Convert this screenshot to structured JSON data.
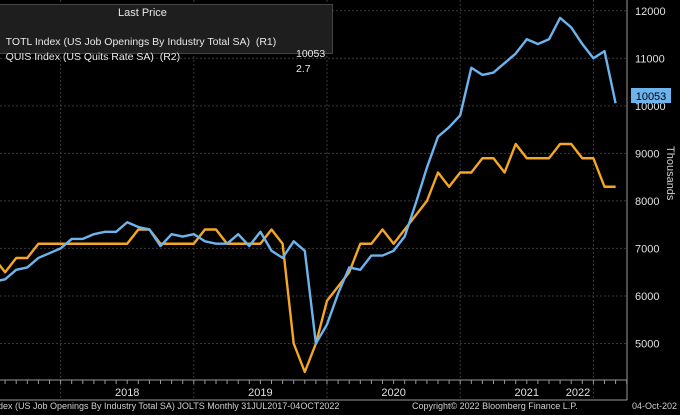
{
  "legend": {
    "header": "Last Price",
    "rows": [
      {
        "label": "TOTL Index (US Job Openings By Industry Total SA)  (R1)",
        "value": "10053",
        "color": "#6cb4ee"
      },
      {
        "label": "QUIS Index (US Quits Rate SA)  (R2)",
        "value": "2.7",
        "color": "#f5a623"
      }
    ]
  },
  "footer": {
    "left": "dex (US Job Openings By Industry Total SA) JOLTS  Monthly 31JUL2017-04OCT2022",
    "center": "Copyright© 2022 Bloomberg Finance L.P.",
    "right": "04-Oct-202"
  },
  "y_axis_title": "Thousands",
  "last_value_badge": "10053",
  "colors": {
    "background": "#000000",
    "openings": "#6cb4ee",
    "quits": "#f5a623",
    "grid": "#3a3a3a"
  },
  "chart_data": {
    "type": "line",
    "x_start": "2017-07",
    "x_end": "2022-08",
    "x_tick_labels": [
      "2018",
      "2019",
      "2020",
      "2021",
      "2022"
    ],
    "y_ticks": [
      5000,
      6000,
      7000,
      8000,
      9000,
      10000,
      11000,
      12000
    ],
    "ylim": [
      4400,
      12100
    ],
    "grid": true,
    "series": [
      {
        "name": "TOTL Index (US Job Openings By Industry Total SA)",
        "axis": "R1",
        "values": [
          6300,
          6350,
          6550,
          6600,
          6800,
          6900,
          7000,
          7200,
          7200,
          7300,
          7350,
          7350,
          7550,
          7450,
          7400,
          7050,
          7300,
          7250,
          7300,
          7150,
          7100,
          7100,
          7300,
          7050,
          7350,
          6950,
          6800,
          7150,
          6950,
          5000,
          5400,
          6050,
          6600,
          6550,
          6850,
          6850,
          6950,
          7250,
          7950,
          8700,
          9350,
          9550,
          9800,
          10800,
          10650,
          10700,
          10900,
          11100,
          11400,
          11300,
          11400,
          11850,
          11650,
          11300,
          11000,
          11150,
          10053
        ]
      },
      {
        "name": "QUIS Index (US Quits Rate SA)",
        "axis": "R2",
        "values": [
          2.2,
          2.1,
          2.2,
          2.2,
          2.3,
          2.3,
          2.3,
          2.3,
          2.3,
          2.3,
          2.3,
          2.3,
          2.3,
          2.4,
          2.4,
          2.3,
          2.3,
          2.3,
          2.3,
          2.4,
          2.4,
          2.3,
          2.3,
          2.3,
          2.3,
          2.4,
          2.3,
          1.6,
          1.4,
          1.6,
          1.9,
          2.0,
          2.1,
          2.3,
          2.3,
          2.4,
          2.3,
          2.4,
          2.5,
          2.6,
          2.8,
          2.7,
          2.8,
          2.8,
          2.9,
          2.9,
          2.8,
          3.0,
          2.9,
          2.9,
          2.9,
          3.0,
          3.0,
          2.9,
          2.9,
          2.7,
          2.7
        ]
      }
    ]
  }
}
